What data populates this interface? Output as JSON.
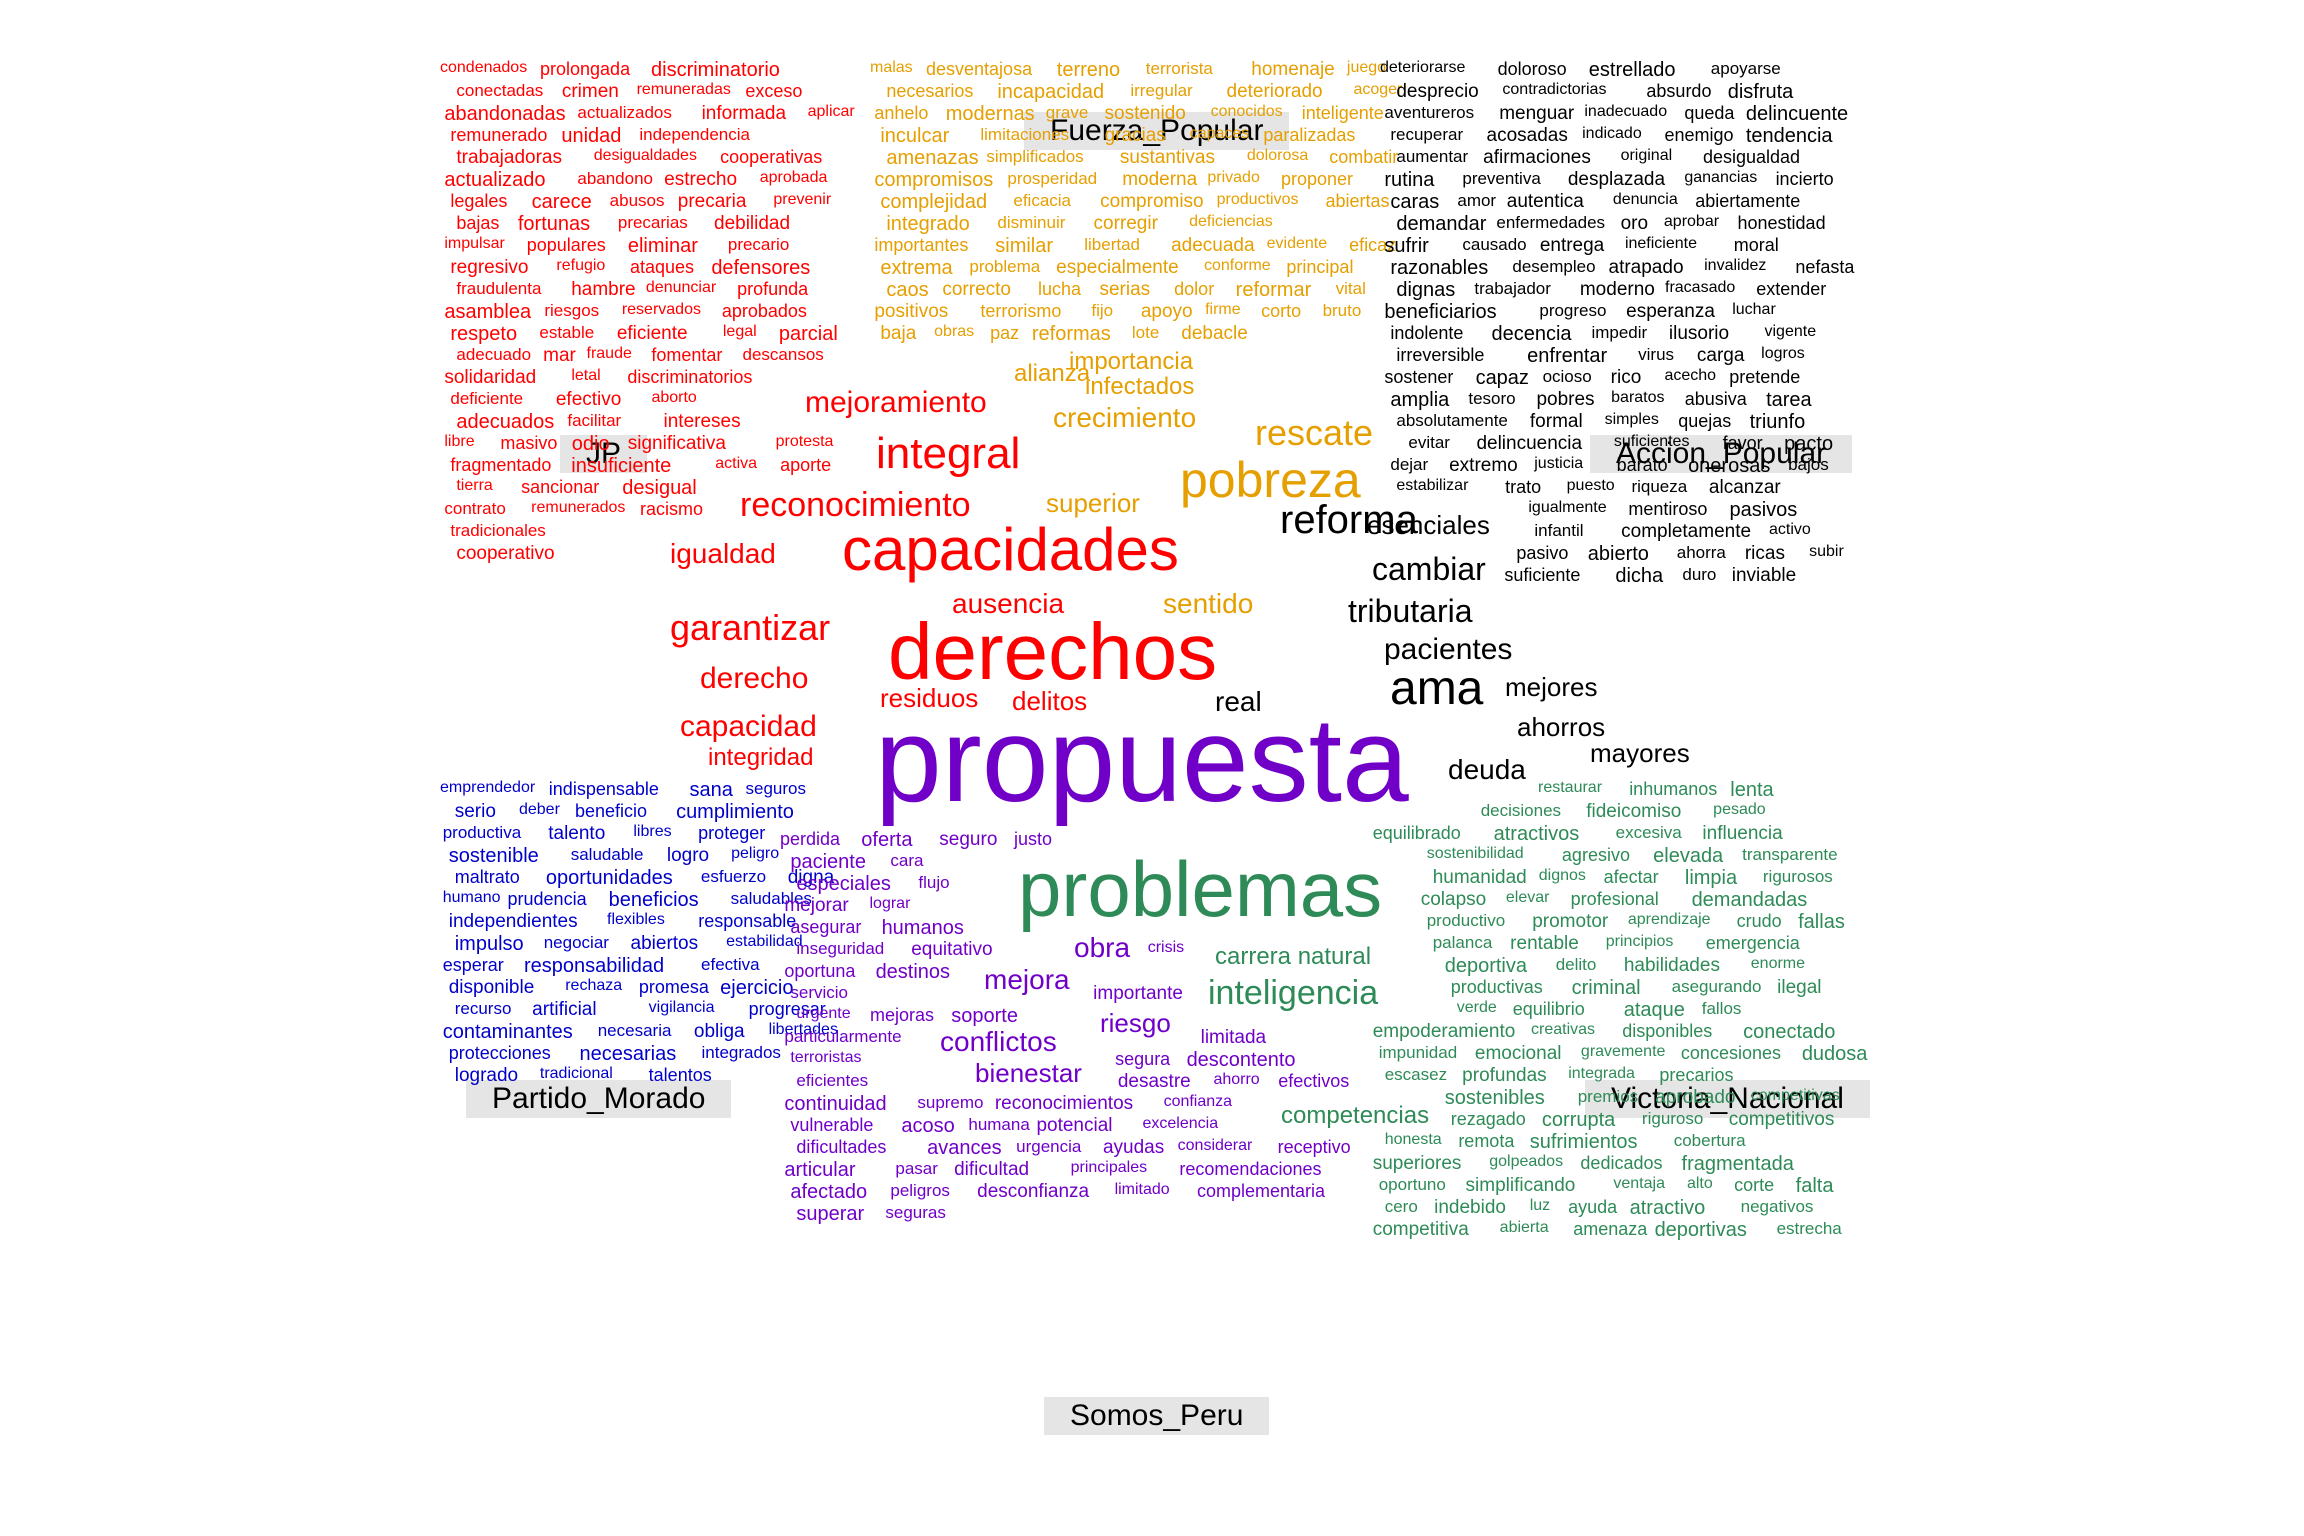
{
  "colors": {
    "red": "#ff0000",
    "orange": "#e69f00",
    "black": "#000000",
    "green": "#2e8b57",
    "blue": "#0000c8",
    "purple": "#7000c8"
  },
  "groups": {
    "fuerza": "Fuerza_Popular",
    "accion": "Accion_Popular",
    "jp": "JP",
    "morado": "Partido_Morado",
    "victoria": "Victoria_Nacional",
    "somos": "Somos_Peru"
  },
  "words": {
    "red": [
      "condenados",
      "prolongada",
      "discriminatorio",
      "conectadas",
      "crimen",
      "remuneradas",
      "exceso",
      "abandonadas",
      "actualizados",
      "informada",
      "aplicar",
      "remunerado",
      "unidad",
      "independencia",
      "trabajadoras",
      "desigualdades",
      "cooperativas",
      "actualizado",
      "abandono",
      "estrecho",
      "aprobada",
      "legales",
      "carece",
      "abusos",
      "precaria",
      "prevenir",
      "bajas",
      "fortunas",
      "precarias",
      "debilidad",
      "impulsar",
      "populares",
      "eliminar",
      "precario",
      "regresivo",
      "refugio",
      "ataques",
      "defensores",
      "fraudulenta",
      "hambre",
      "denunciar",
      "profunda",
      "asamblea",
      "riesgos",
      "mejoramiento",
      "reservados",
      "aprobados",
      "respeto",
      "estable",
      "eficiente",
      "legal",
      "integral",
      "parcial",
      "adecuado",
      "mar",
      "fraude",
      "fomentar",
      "reconocimiento",
      "descansos",
      "solidaridad",
      "letal",
      "discriminatorios",
      "capacidades",
      "deficiente",
      "efectivo",
      "aborto",
      "igualdad",
      "adecuados",
      "facilitar",
      "intereses",
      "libre",
      "masivo",
      "odio",
      "ausencia",
      "significativa",
      "protesta",
      "fragmentado",
      "insuficiente",
      "garantizar",
      "derechos",
      "activa",
      "aporte",
      "derecho",
      "residuos",
      "delitos",
      "tierra",
      "sancionar",
      "desigual",
      "contrato",
      "capacidad",
      "remunerados",
      "racismo",
      "integridad",
      "tradicionales",
      "cooperativo"
    ],
    "orange": [
      "malas",
      "desventajosa",
      "terreno",
      "terrorista",
      "homenaje",
      "juego",
      "necesarios",
      "incapacidad",
      "irregular",
      "deteriorado",
      "acoger",
      "anhelo",
      "modernas",
      "grave",
      "sostenido",
      "conocidos",
      "inteligente",
      "inculcar",
      "limitaciones",
      "gracias",
      "capaces",
      "paralizadas",
      "amenazas",
      "simplificados",
      "sustantivas",
      "dolorosa",
      "combatir",
      "compromisos",
      "prosperidad",
      "moderna",
      "privado",
      "proponer",
      "complejidad",
      "eficacia",
      "compromiso",
      "productivos",
      "abiertas",
      "integrado",
      "disminuir",
      "corregir",
      "deficiencias",
      "importantes",
      "similar",
      "libertad",
      "adecuada",
      "evidente",
      "eficaz",
      "extrema",
      "problema",
      "especialmente",
      "conforme",
      "principal",
      "caos",
      "importancia",
      "correcto",
      "alianza",
      "lucha",
      "infectados",
      "crecimiento",
      "serias",
      "rescate",
      "dolor",
      "reformar",
      "vital",
      "positivos",
      "pobreza",
      "terrorismo",
      "superior",
      "fijo",
      "apoyo",
      "firme",
      "corto",
      "sentido",
      "bruto",
      "baja",
      "obras",
      "paz",
      "reformas",
      "lote",
      "debacle"
    ],
    "black": [
      "deteriorarse",
      "doloroso",
      "estrellado",
      "apoyarse",
      "desprecio",
      "contradictorias",
      "absurdo",
      "disfruta",
      "aventureros",
      "menguar",
      "inadecuado",
      "queda",
      "delincuente",
      "recuperar",
      "acosadas",
      "indicado",
      "enemigo",
      "tendencia",
      "aumentar",
      "afirmaciones",
      "original",
      "desigualdad",
      "rutina",
      "preventiva",
      "desplazada",
      "ganancias",
      "incierto",
      "caras",
      "amor",
      "autentica",
      "denuncia",
      "abiertamente",
      "demandar",
      "enfermedades",
      "oro",
      "aprobar",
      "honestidad",
      "sufrir",
      "causado",
      "entrega",
      "ineficiente",
      "moral",
      "razonables",
      "desempleo",
      "atrapado",
      "invalidez",
      "nefasta",
      "dignas",
      "trabajador",
      "moderno",
      "fracasado",
      "extender",
      "beneficiarios",
      "progreso",
      "esperanza",
      "luchar",
      "indolente",
      "decencia",
      "impedir",
      "ilusorio",
      "vigente",
      "irreversible",
      "enfrentar",
      "virus",
      "carga",
      "logros",
      "sostener",
      "capaz",
      "ocioso",
      "rico",
      "acecho",
      "pretende",
      "amplia",
      "tesoro",
      "pobres",
      "baratos",
      "abusiva",
      "tarea",
      "absolutamente",
      "formal",
      "simples",
      "quejas",
      "triunfo",
      "evitar",
      "delincuencia",
      "suficientes",
      "favor",
      "pacto",
      "dejar",
      "extremo",
      "justicia",
      "barato",
      "onerosas",
      "bajos",
      "mayores",
      "estabilizar",
      "trato",
      "esenciales",
      "cambiar",
      "tributaria",
      "pacientes",
      "ama",
      "mejores",
      "ahorros",
      "deuda",
      "puesto",
      "reforma",
      "real",
      "riqueza",
      "alcanzar",
      "igualmente",
      "mentiroso",
      "pasivos",
      "infantil",
      "completamente",
      "activo",
      "pasivo",
      "abierto",
      "ahorra",
      "ricas",
      "subir",
      "suficiente",
      "dicha",
      "duro",
      "inviable"
    ],
    "green": [
      "restaurar",
      "inhumanos",
      "lenta",
      "decisiones",
      "fideicomiso",
      "pesado",
      "equilibrado",
      "atractivos",
      "excesiva",
      "influencia",
      "sostenibilidad",
      "agresivo",
      "elevada",
      "transparente",
      "humanidad",
      "dignos",
      "afectar",
      "limpia",
      "rigurosos",
      "colapso",
      "elevar",
      "profesional",
      "demandadas",
      "productivo",
      "promotor",
      "aprendizaje",
      "crudo",
      "fallas",
      "palanca",
      "rentable",
      "principios",
      "emergencia",
      "deportiva",
      "delito",
      "habilidades",
      "enorme",
      "productivas",
      "criminal",
      "asegurando",
      "ilegal",
      "verde",
      "equilibrio",
      "ataque",
      "fallos",
      "empoderamiento",
      "creativas",
      "disponibles",
      "conectado",
      "impunidad",
      "emocional",
      "gravemente",
      "concesiones",
      "dudosa",
      "escasez",
      "profundas",
      "integrada",
      "precarios",
      "sostenibles",
      "premios",
      "aprobado",
      "competitivas",
      "rezagado",
      "corrupta",
      "riguroso",
      "competitivos",
      "honesta",
      "remota",
      "sufrimientos",
      "cobertura",
      "superiores",
      "golpeados",
      "dedicados",
      "fragmentada",
      "oportuno",
      "simplificando",
      "ventaja",
      "problemas",
      "inteligencia",
      "carrera natural",
      "competencias",
      "alto",
      "corte",
      "falta",
      "cero",
      "indebido",
      "luz",
      "ayuda",
      "atractivo",
      "negativos",
      "competitiva",
      "abierta",
      "amenaza",
      "deportivas",
      "estrecha"
    ],
    "blue": [
      "emprendedor",
      "indispensable",
      "sana",
      "seguros",
      "serio",
      "deber",
      "beneficio",
      "cumplimiento",
      "productiva",
      "talento",
      "libres",
      "proteger",
      "sostenible",
      "saludable",
      "logro",
      "peligro",
      "maltrato",
      "oportunidades",
      "esfuerzo",
      "digna",
      "humano",
      "prudencia",
      "beneficios",
      "saludables",
      "independientes",
      "flexibles",
      "responsable",
      "impulso",
      "negociar",
      "abiertos",
      "estabilidad",
      "esperar",
      "responsabilidad",
      "efectiva",
      "disponible",
      "rechaza",
      "promesa",
      "ejercicio",
      "recurso",
      "artificial",
      "vigilancia",
      "progresar",
      "contaminantes",
      "necesaria",
      "obliga",
      "libertades",
      "protecciones",
      "necesarias",
      "integrados",
      "logrado",
      "tradicional",
      "talentos"
    ],
    "purple": [
      "propuesta",
      "perdida",
      "oferta",
      "obra",
      "seguro",
      "mejora",
      "justo",
      "paciente",
      "cara",
      "conflictos",
      "riesgo",
      "bienestar",
      "especiales",
      "flujo",
      "mejorar",
      "lograr",
      "asegurar",
      "humanos",
      "inseguridad",
      "equitativo",
      "crisis",
      "oportuna",
      "destinos",
      "servicio",
      "importante",
      "urgente",
      "mejoras",
      "soporte",
      "particularmente",
      "limitada",
      "terroristas",
      "segura",
      "descontento",
      "eficientes",
      "desastre",
      "ahorro",
      "efectivos",
      "continuidad",
      "supremo",
      "reconocimientos",
      "confianza",
      "vulnerable",
      "acoso",
      "humana",
      "potencial",
      "excelencia",
      "dificultades",
      "avances",
      "urgencia",
      "ayudas",
      "considerar",
      "receptivo",
      "articular",
      "pasar",
      "dificultad",
      "principales",
      "recomendaciones",
      "afectado",
      "peligros",
      "desconfianza",
      "limitado",
      "complementaria",
      "superar",
      "seguras"
    ]
  }
}
